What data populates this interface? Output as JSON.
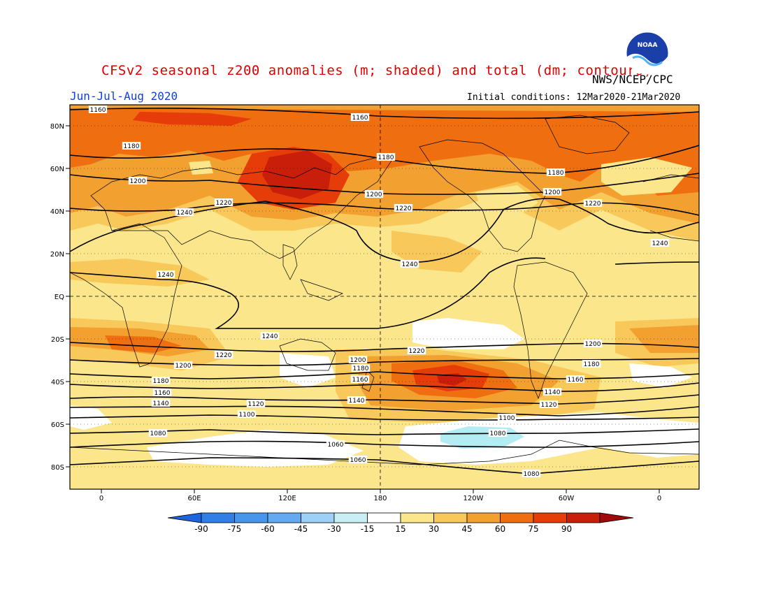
{
  "title": "CFSv2 seasonal z200 anomalies (m; shaded) and total (dm; contours)",
  "agency": "NWS/NCEP/CPC",
  "season": "Jun-Jul-Aug 2020",
  "initial_conditions": "Initial conditions: 12Mar2020-21Mar2020",
  "logo_text": "NOAA",
  "lat_labels": [
    "80N",
    "60N",
    "40N",
    "20N",
    "EQ",
    "20S",
    "40S",
    "60S",
    "80S"
  ],
  "lon_labels": [
    "0",
    "60E",
    "120E",
    "180",
    "120W",
    "60W",
    "0"
  ],
  "contour_labels": [
    "1160",
    "1160",
    "1180",
    "1180",
    "1180",
    "1200",
    "1200",
    "1200",
    "1220",
    "1220",
    "1220",
    "1240",
    "1240",
    "1240",
    "1240",
    "1240",
    "1220",
    "1220",
    "1200",
    "1200",
    "1200",
    "1180",
    "1180",
    "1180",
    "1160",
    "1160",
    "1160",
    "1140",
    "1140",
    "1140",
    "1120",
    "1120",
    "1100",
    "1100",
    "1080",
    "1080",
    "1060",
    "1060",
    "1080"
  ],
  "colorbar": {
    "ticks": [
      "-90",
      "-75",
      "-60",
      "-45",
      "-30",
      "-15",
      "15",
      "30",
      "45",
      "60",
      "75",
      "90"
    ],
    "colors": [
      "#1e64dc",
      "#2f7fe6",
      "#4696ec",
      "#64aaf2",
      "#9cd0f6",
      "#c8f0f4",
      "#ffffff",
      "#fbe68c",
      "#f8c85a",
      "#f2a030",
      "#ee6e10",
      "#e63c0a",
      "#c81e0a",
      "#a00a0a"
    ]
  },
  "colors": {
    "title": "#e00000",
    "season": "#1040e0",
    "anom_15_30": "#fbe68c",
    "anom_30_45": "#f8c85a",
    "anom_45_60": "#f2a030",
    "anom_60_75": "#ee6e10",
    "anom_75_90": "#e63c0a",
    "anom_90plus": "#c81e0a",
    "anom_neg": "#b4ecf4"
  }
}
